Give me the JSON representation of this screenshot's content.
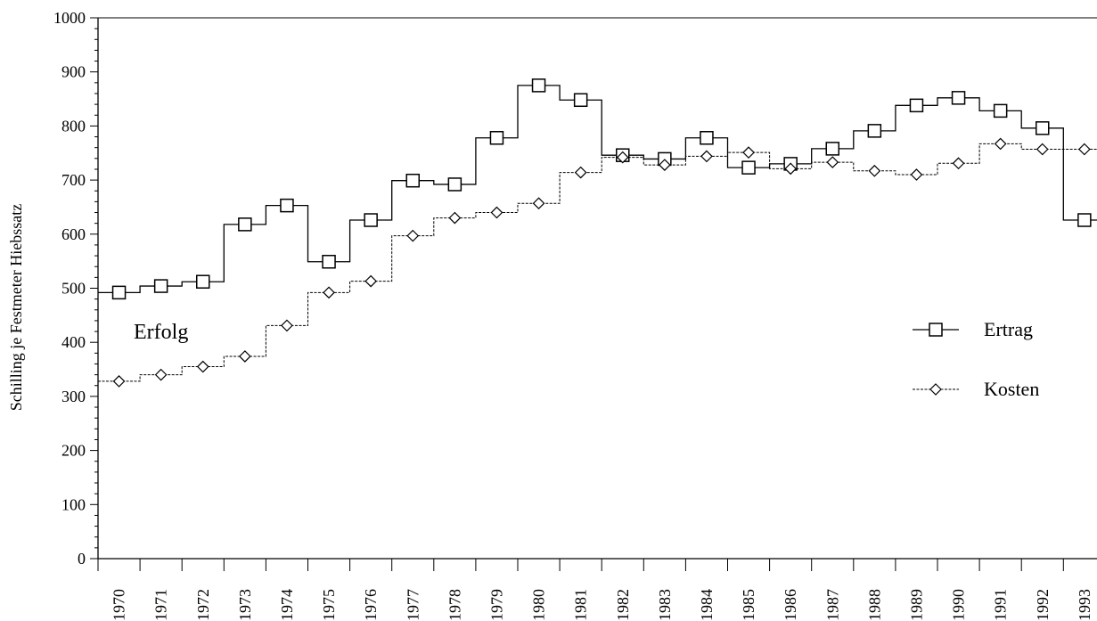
{
  "chart_data": {
    "type": "line",
    "title": "",
    "ylabel": "Schilling je Festmeter Hiebssatz",
    "xlabel": "",
    "annotation": "Erfolg",
    "categories": [
      "1970",
      "1971",
      "1972",
      "1973",
      "1974",
      "1975",
      "1976",
      "1977",
      "1978",
      "1979",
      "1980",
      "1981",
      "1982",
      "1983",
      "1984",
      "1985",
      "1986",
      "1987",
      "1988",
      "1989",
      "1990",
      "1991",
      "1992",
      "1993"
    ],
    "yticks": [
      0,
      100,
      200,
      300,
      400,
      500,
      600,
      700,
      800,
      900,
      1000
    ],
    "ylim": [
      0,
      1000
    ],
    "grid": false,
    "legend_position": "right",
    "series": [
      {
        "name": "Ertrag",
        "marker": "square",
        "values": [
          492,
          504,
          512,
          618,
          653,
          549,
          626,
          699,
          692,
          778,
          875,
          848,
          746,
          739,
          778,
          723,
          730,
          758,
          791,
          838,
          852,
          828,
          796,
          626
        ]
      },
      {
        "name": "Kosten",
        "marker": "diamond",
        "values": [
          328,
          340,
          355,
          374,
          431,
          492,
          513,
          597,
          630,
          640,
          657,
          714,
          742,
          728,
          744,
          751,
          721,
          733,
          717,
          710,
          731,
          767,
          757,
          757
        ]
      }
    ]
  }
}
